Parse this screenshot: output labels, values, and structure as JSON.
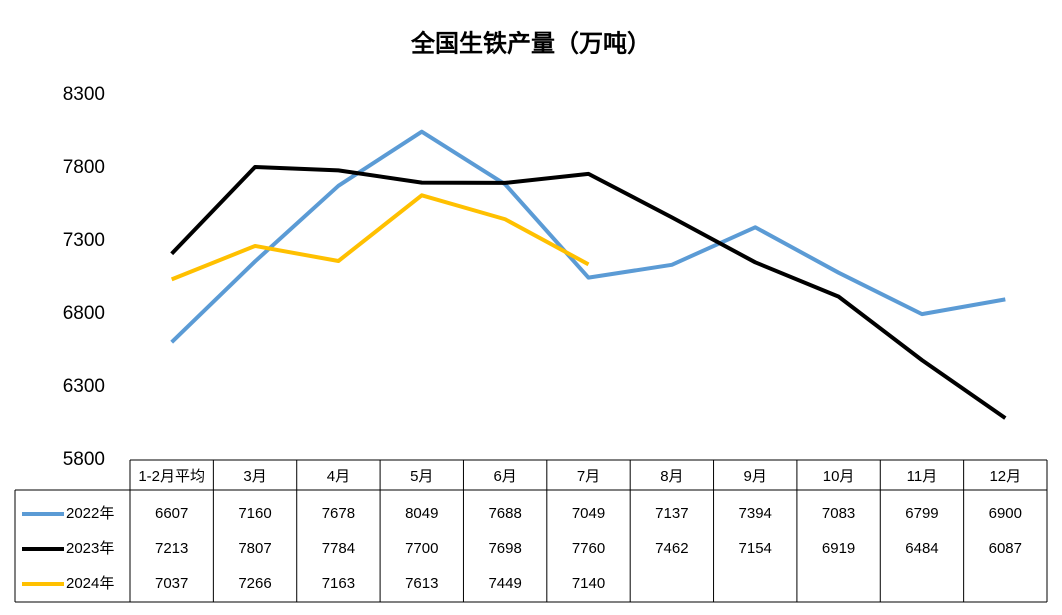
{
  "chart_data": {
    "type": "line",
    "title": "全国生铁产量（万吨）",
    "categories": [
      "1-2月平均",
      "3月",
      "4月",
      "5月",
      "6月",
      "7月",
      "8月",
      "9月",
      "10月",
      "11月",
      "12月"
    ],
    "series": [
      {
        "name": "2022年",
        "color": "#5b9bd5",
        "values": [
          6607,
          7160,
          7678,
          8049,
          7688,
          7049,
          7137,
          7394,
          7083,
          6799,
          6900
        ]
      },
      {
        "name": "2023年",
        "color": "#000000",
        "values": [
          7213,
          7807,
          7784,
          7700,
          7698,
          7760,
          7462,
          7154,
          6919,
          6484,
          6087
        ]
      },
      {
        "name": "2024年",
        "color": "#ffc000",
        "values": [
          7037,
          7266,
          7163,
          7613,
          7449,
          7140,
          null,
          null,
          null,
          null,
          null
        ]
      }
    ],
    "ylim": [
      5800,
      8300
    ],
    "yticks": [
      5800,
      6300,
      6800,
      7300,
      7800,
      8300
    ],
    "grid": false
  }
}
